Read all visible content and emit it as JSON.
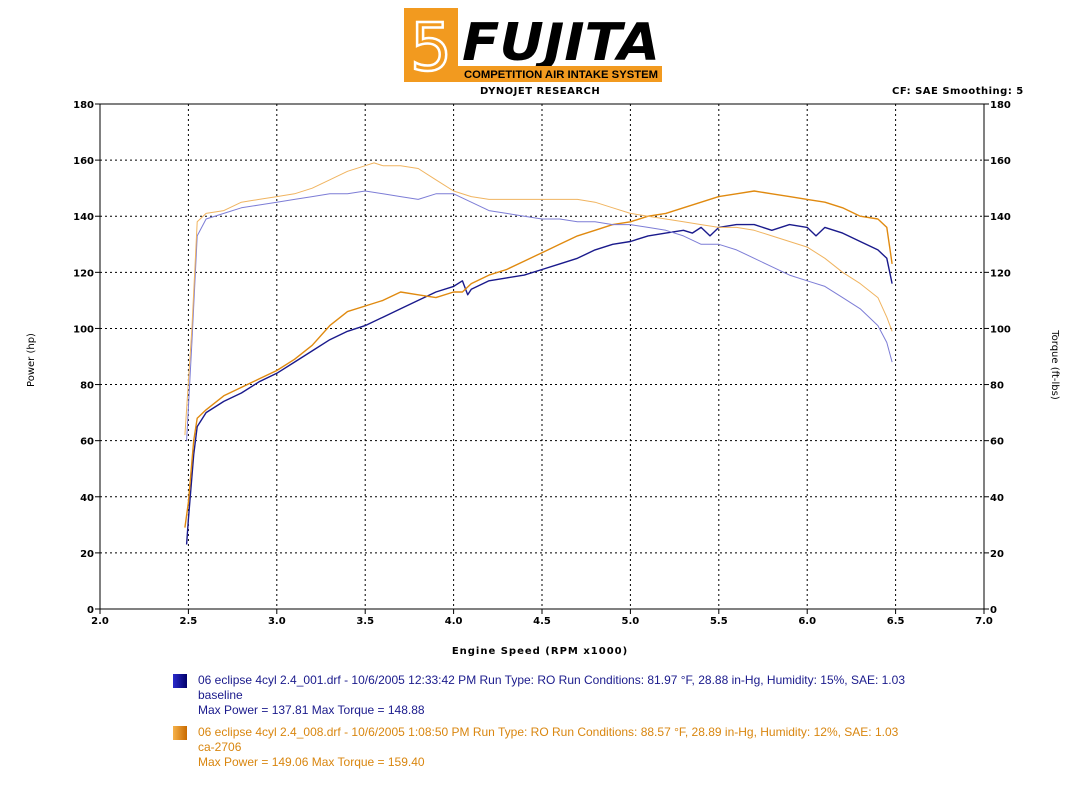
{
  "logo": {
    "glyph": "5",
    "brand": "FUJITA",
    "tagline": "COMPETITION AIR INTAKE SYSTEM",
    "colors": {
      "orange": "#f29a1f",
      "black": "#000000"
    }
  },
  "header": {
    "left": "DYNOJET RESEARCH",
    "right": "CF: SAE  Smoothing: 5"
  },
  "chart_data": {
    "type": "line",
    "xlabel": "Engine Speed (RPM x1000)",
    "ylabel_left": "Power (hp)",
    "ylabel_right": "Torque (ft-lbs)",
    "xlim": [
      2.0,
      7.0
    ],
    "ylim": [
      0,
      180
    ],
    "x_ticks": [
      "2.0",
      "2.5",
      "3.0",
      "3.5",
      "4.0",
      "4.5",
      "5.0",
      "5.5",
      "6.0",
      "6.5",
      "7.0"
    ],
    "y_ticks": [
      "0",
      "20",
      "40",
      "60",
      "80",
      "100",
      "120",
      "140",
      "160",
      "180"
    ],
    "grid": true,
    "series": [
      {
        "name": "baseline",
        "measure": "power",
        "color": "#1a1a8c",
        "x": [
          2.49,
          2.5,
          2.53,
          2.55,
          2.6,
          2.7,
          2.8,
          2.9,
          3.0,
          3.1,
          3.2,
          3.3,
          3.4,
          3.5,
          3.6,
          3.7,
          3.8,
          3.9,
          4.0,
          4.05,
          4.08,
          4.1,
          4.2,
          4.3,
          4.4,
          4.5,
          4.6,
          4.7,
          4.8,
          4.9,
          5.0,
          5.1,
          5.2,
          5.3,
          5.35,
          5.4,
          5.45,
          5.5,
          5.6,
          5.7,
          5.8,
          5.9,
          6.0,
          6.05,
          6.1,
          6.2,
          6.3,
          6.4,
          6.45,
          6.48
        ],
        "values": [
          23,
          32,
          55,
          65,
          70,
          74,
          77,
          81,
          84,
          88,
          92,
          96,
          99,
          101,
          104,
          107,
          110,
          113,
          115,
          117,
          112,
          114,
          117,
          118,
          119,
          121,
          123,
          125,
          128,
          130,
          131,
          133,
          134,
          135,
          134,
          136,
          133,
          136,
          137,
          137,
          135,
          137,
          136,
          133,
          136,
          134,
          131,
          128,
          125,
          116
        ]
      },
      {
        "name": "ca-2706",
        "measure": "power",
        "color": "#e08a10",
        "x": [
          2.48,
          2.5,
          2.53,
          2.55,
          2.6,
          2.7,
          2.8,
          2.9,
          3.0,
          3.1,
          3.2,
          3.3,
          3.4,
          3.5,
          3.6,
          3.7,
          3.8,
          3.9,
          4.0,
          4.05,
          4.1,
          4.2,
          4.3,
          4.4,
          4.5,
          4.6,
          4.7,
          4.8,
          4.9,
          5.0,
          5.1,
          5.2,
          5.3,
          5.4,
          5.5,
          5.6,
          5.7,
          5.8,
          5.9,
          6.0,
          6.1,
          6.2,
          6.3,
          6.4,
          6.45,
          6.48
        ],
        "values": [
          29,
          38,
          60,
          68,
          71,
          76,
          79,
          82,
          85,
          89,
          94,
          101,
          106,
          108,
          110,
          113,
          112,
          111,
          113,
          113,
          116,
          119,
          121,
          124,
          127,
          130,
          133,
          135,
          137,
          138,
          140,
          141,
          143,
          145,
          147,
          148,
          149,
          148,
          147,
          146,
          145,
          143,
          140,
          139,
          136,
          123
        ]
      },
      {
        "name": "baseline",
        "measure": "torque",
        "color": "#7d7dd6",
        "x": [
          2.49,
          2.52,
          2.55,
          2.6,
          2.7,
          2.8,
          2.9,
          3.0,
          3.1,
          3.2,
          3.3,
          3.4,
          3.5,
          3.6,
          3.7,
          3.8,
          3.9,
          4.0,
          4.1,
          4.2,
          4.3,
          4.4,
          4.5,
          4.6,
          4.7,
          4.8,
          4.9,
          5.0,
          5.1,
          5.2,
          5.3,
          5.4,
          5.5,
          5.6,
          5.7,
          5.8,
          5.9,
          6.0,
          6.1,
          6.2,
          6.3,
          6.4,
          6.45,
          6.48
        ],
        "values": [
          60,
          95,
          133,
          139,
          141,
          143,
          144,
          145,
          146,
          147,
          148,
          148,
          149,
          148,
          147,
          146,
          148,
          148,
          145,
          142,
          141,
          140,
          139,
          139,
          138,
          138,
          137,
          137,
          136,
          135,
          133,
          130,
          130,
          128,
          125,
          122,
          119,
          117,
          115,
          111,
          107,
          101,
          95,
          88
        ]
      },
      {
        "name": "ca-2706",
        "measure": "torque",
        "color": "#f0b460",
        "x": [
          2.48,
          2.52,
          2.55,
          2.6,
          2.7,
          2.8,
          2.9,
          3.0,
          3.1,
          3.2,
          3.3,
          3.4,
          3.5,
          3.55,
          3.6,
          3.7,
          3.8,
          3.9,
          4.0,
          4.1,
          4.2,
          4.3,
          4.4,
          4.5,
          4.6,
          4.7,
          4.8,
          4.9,
          5.0,
          5.1,
          5.2,
          5.3,
          5.4,
          5.5,
          5.6,
          5.7,
          5.8,
          5.9,
          6.0,
          6.1,
          6.2,
          6.3,
          6.4,
          6.45,
          6.48
        ],
        "values": [
          62,
          100,
          138,
          141,
          142,
          145,
          146,
          147,
          148,
          150,
          153,
          156,
          158,
          159,
          158,
          158,
          157,
          153,
          149,
          147,
          146,
          146,
          146,
          146,
          146,
          146,
          145,
          143,
          141,
          140,
          139,
          138,
          137,
          136,
          136,
          135,
          133,
          131,
          129,
          125,
          120,
          116,
          111,
          104,
          99
        ]
      }
    ]
  },
  "legend": [
    {
      "line1": "06 eclipse 4cyl 2.4_001.drf - 10/6/2005 12:33:42 PM  Run Type: RO  Run Conditions: 81.97 °F, 28.88 in-Hg,  Humidity:  15%, SAE: 1.03",
      "line2": "baseline",
      "line3": "Max Power = 137.81  Max Torque = 148.88",
      "color": "#1a1a8c"
    },
    {
      "line1": "06 eclipse 4cyl 2.4_008.drf - 10/6/2005 1:08:50 PM  Run Type: RO  Run Conditions: 88.57 °F, 28.89 in-Hg,  Humidity:  12%, SAE: 1.03",
      "line2": "ca-2706",
      "line3": "Max Power = 149.06  Max Torque = 159.40",
      "color": "#e08a10"
    }
  ]
}
